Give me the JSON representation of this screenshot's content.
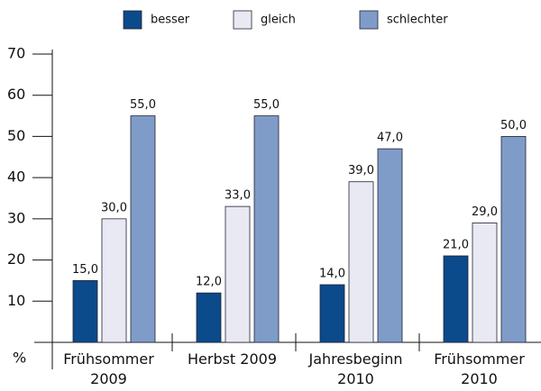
{
  "chart_data": {
    "type": "bar",
    "categories": [
      "Frühsommer 2009",
      "Herbst 2009",
      "Jahresbeginn 2010",
      "Frühsommer 2010"
    ],
    "series": [
      {
        "name": "besser",
        "color": "#0b4a8b",
        "values": [
          15,
          12,
          14,
          21
        ],
        "value_labels": [
          "15,0",
          "12,0",
          "14,0",
          "21,0"
        ]
      },
      {
        "name": "gleich",
        "color": "#e8e9f3",
        "values": [
          30,
          33,
          39,
          29
        ],
        "value_labels": [
          "30,0",
          "33,0",
          "39,0",
          "29,0"
        ]
      },
      {
        "name": "schlechter",
        "color": "#7f9cc9",
        "values": [
          55,
          55,
          47,
          50
        ],
        "value_labels": [
          "55,0",
          "55,0",
          "47,0",
          "50,0"
        ]
      }
    ],
    "y_label": "%",
    "ylim": [
      0,
      70
    ],
    "yticks": [
      10,
      20,
      30,
      40,
      50,
      60,
      70
    ],
    "legend": "top"
  }
}
